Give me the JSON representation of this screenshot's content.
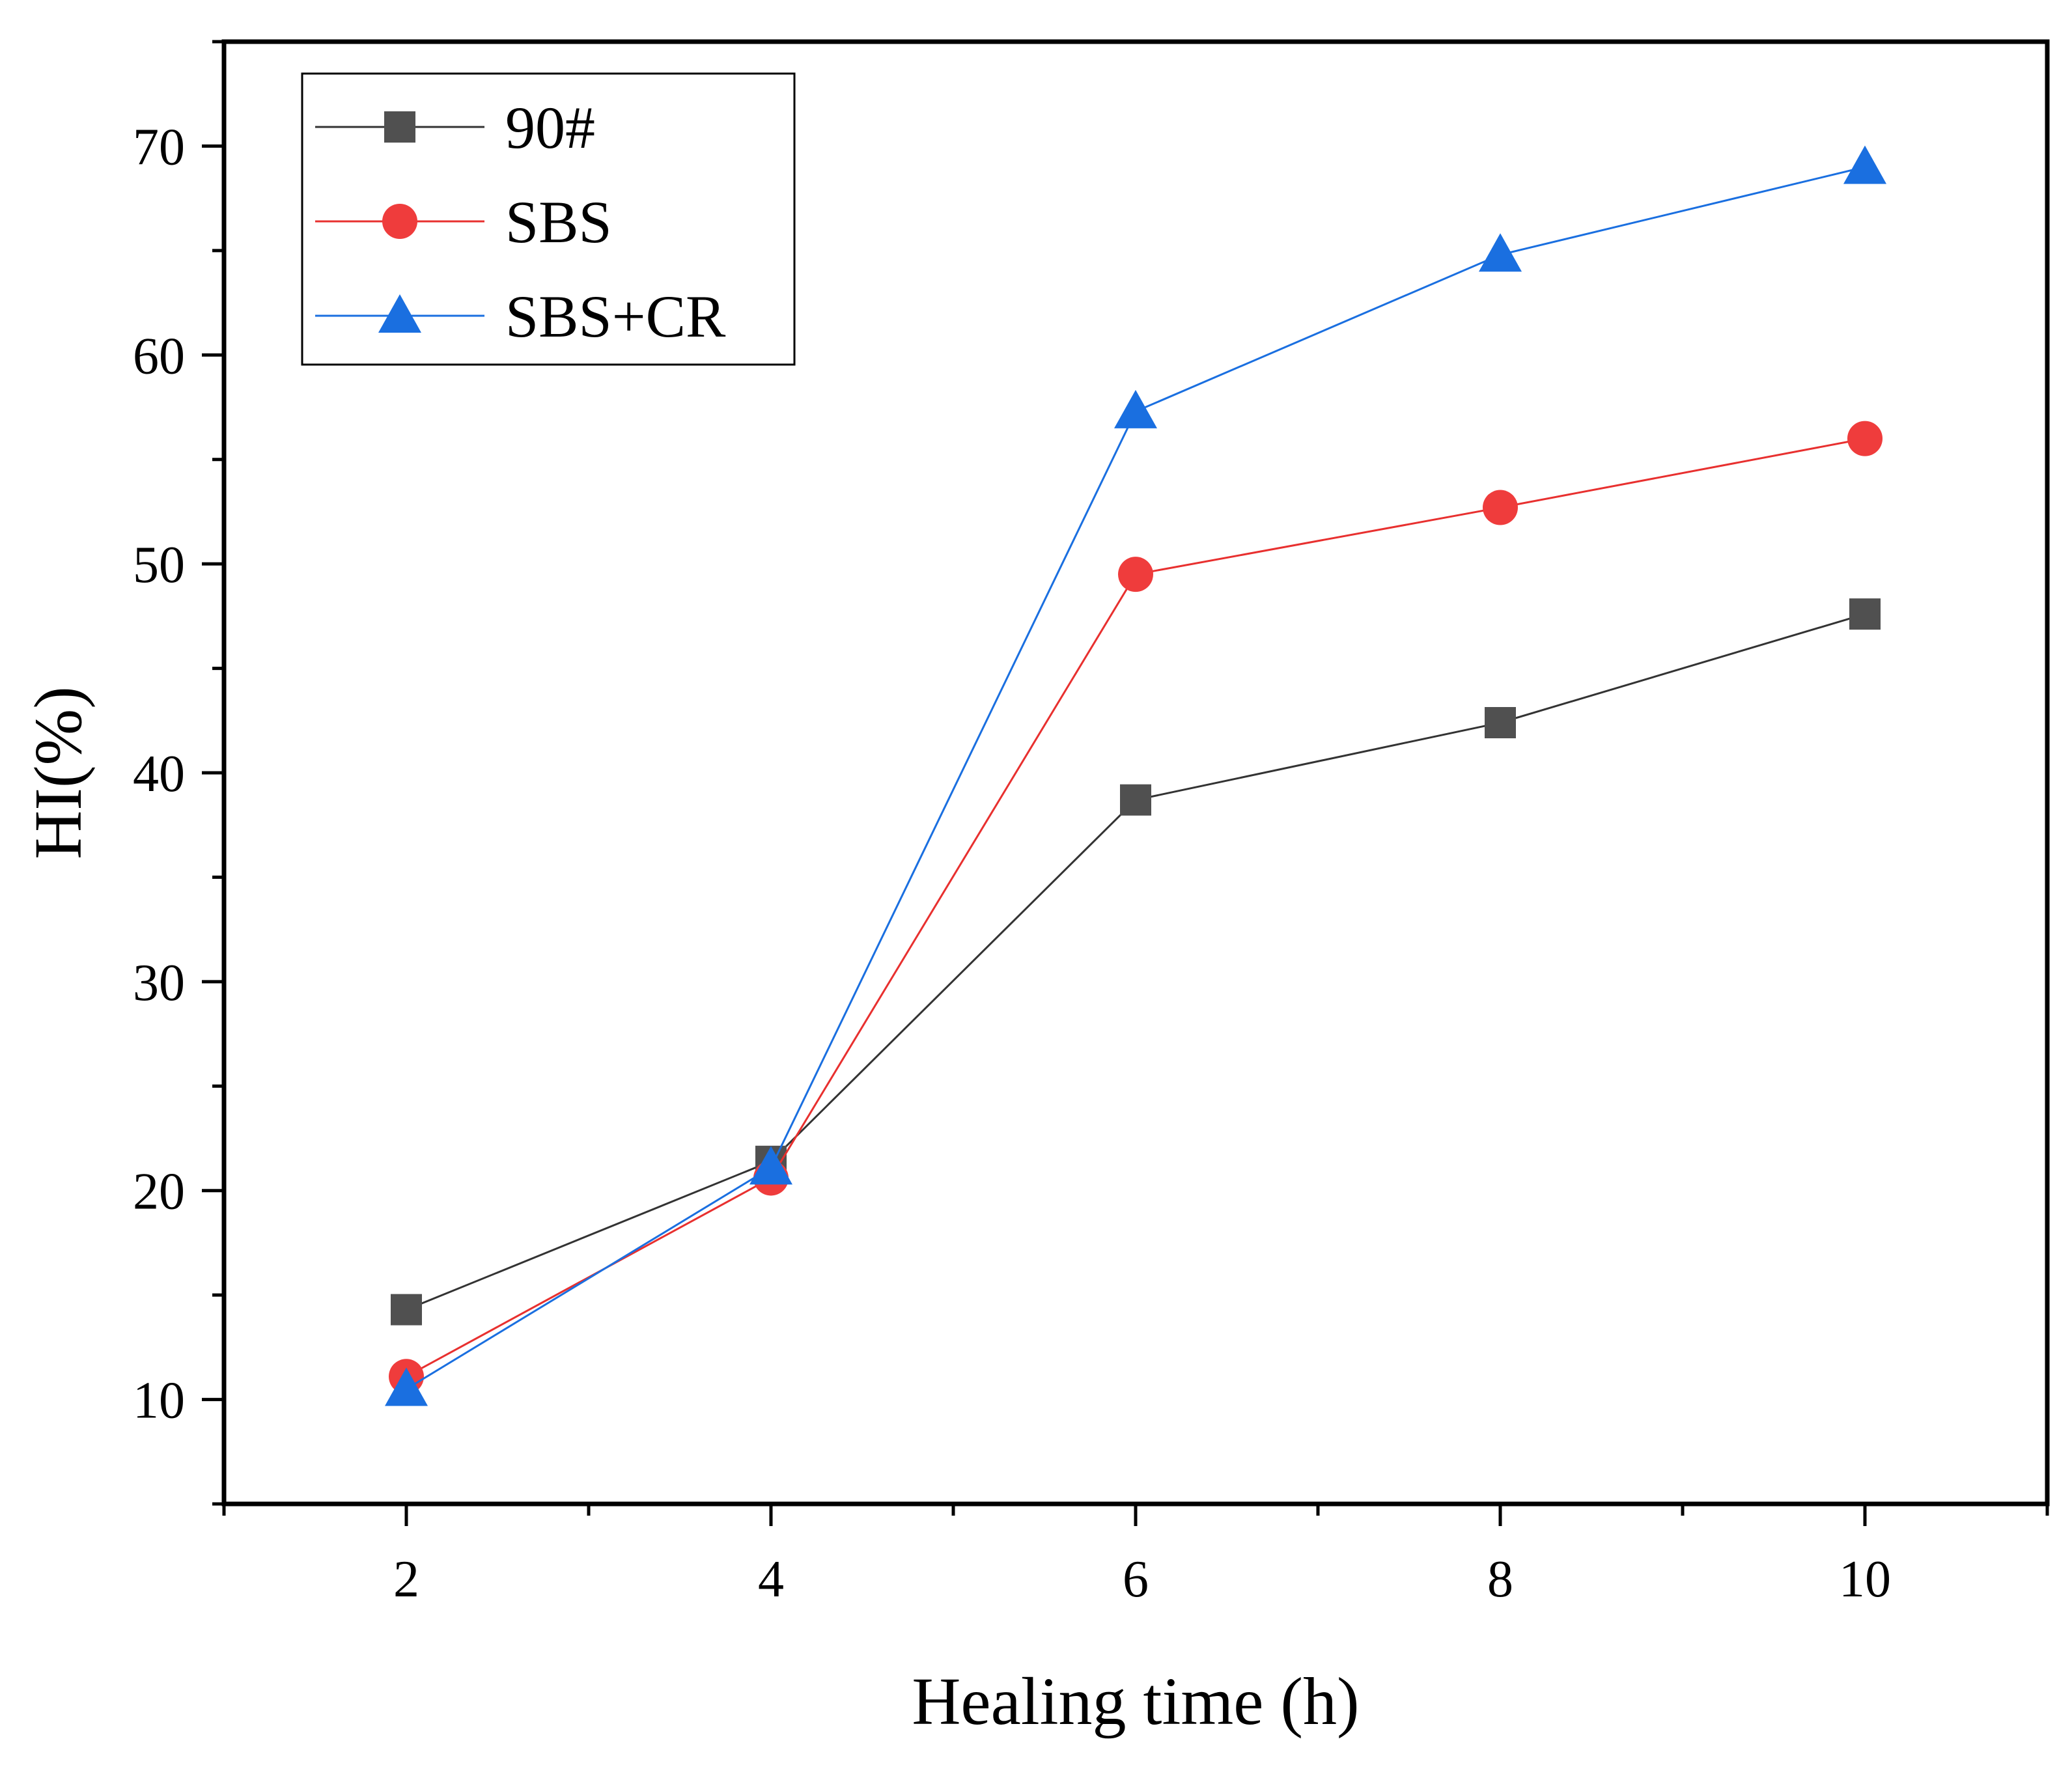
{
  "chart_data": {
    "type": "line",
    "title": "",
    "xlabel": "Healing time (h)",
    "ylabel": "HI(%)",
    "x": [
      2,
      4,
      6,
      8,
      10
    ],
    "xlim": [
      1,
      11
    ],
    "ylim": [
      5,
      75
    ],
    "x_ticks": [
      2,
      4,
      6,
      8,
      10
    ],
    "y_ticks": [
      10,
      20,
      30,
      40,
      50,
      60,
      70
    ],
    "legend_position": "top-left",
    "grid": false,
    "series": [
      {
        "name": "90#",
        "values": [
          14.3,
          21.4,
          38.7,
          42.4,
          47.6
        ],
        "color": "#505050",
        "line_color": "#333333",
        "marker": "square"
      },
      {
        "name": "SBS",
        "values": [
          11.1,
          20.6,
          49.5,
          52.7,
          56.0
        ],
        "color": "#ef3c3c",
        "line_color": "#e8302f",
        "marker": "circle"
      },
      {
        "name": "SBS+CR",
        "values": [
          10.5,
          21.1,
          57.3,
          64.8,
          69.0
        ],
        "color": "#1a6fe0",
        "line_color": "#1a6fe0",
        "marker": "triangle"
      }
    ]
  }
}
